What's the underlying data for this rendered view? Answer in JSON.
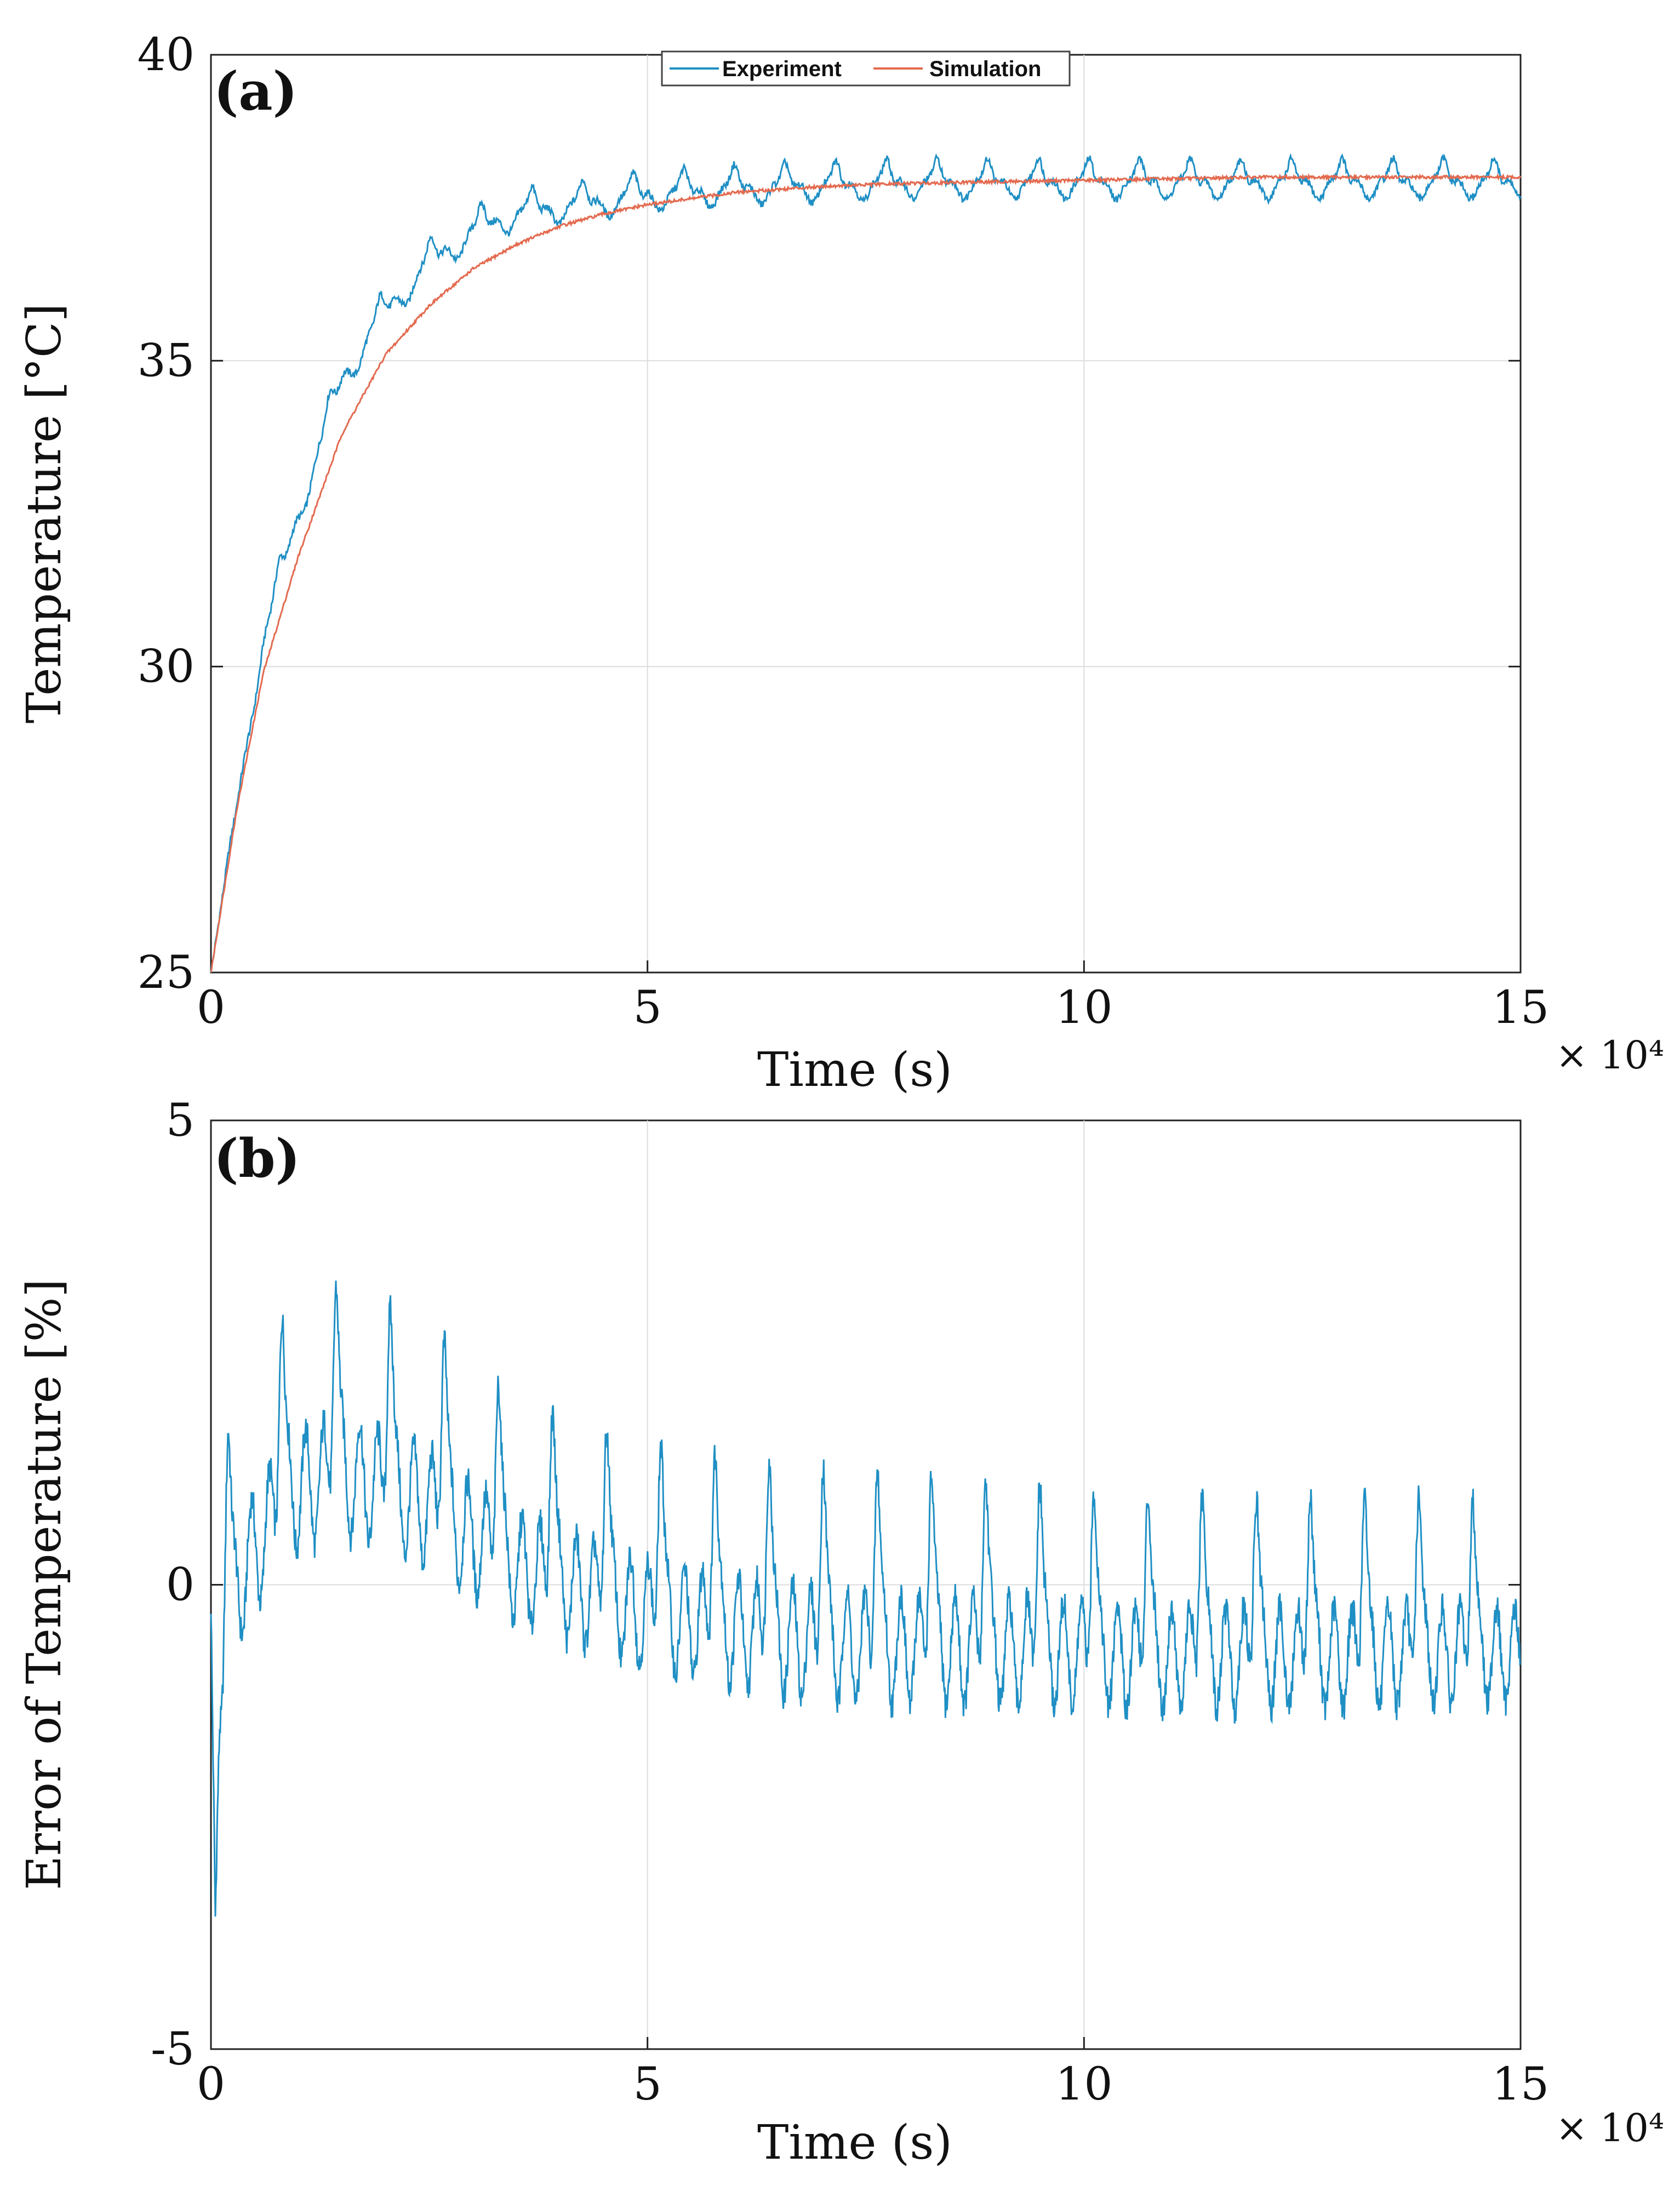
{
  "colors": {
    "experiment": "#1f8fc4",
    "simulation": "#e36a4f",
    "grid": "#dcdcdc",
    "axis": "#222222"
  },
  "chart_data": [
    {
      "type": "line",
      "panel_label": "(a)",
      "title": "",
      "xlabel": "Time (s)",
      "ylabel": "Temperature [°C]",
      "x_exponent_label": "× 10⁴",
      "xlim": [
        0,
        15
      ],
      "ylim": [
        25,
        40
      ],
      "x_ticks": [
        0,
        5,
        10,
        15
      ],
      "y_ticks": [
        25,
        30,
        35,
        40
      ],
      "x_tick_labels": [
        "0",
        "5",
        "10",
        "15"
      ],
      "y_tick_labels": [
        "25",
        "30",
        "35",
        "40"
      ],
      "grid": true,
      "legend": {
        "placement": "top-center",
        "entries": [
          "Experiment",
          "Simulation"
        ]
      },
      "series": [
        {
          "name": "Experiment",
          "color": "#1f8fc4",
          "x": [
            0,
            0.3,
            0.6,
            1.0,
            1.5,
            2.0,
            2.5,
            3.0,
            3.5,
            4.0,
            4.5,
            5.0,
            6.0,
            7.0,
            8.0,
            10.0,
            12.0,
            14.0,
            15.0
          ],
          "y": [
            25.0,
            27.8,
            30.5,
            32.6,
            34.8,
            35.9,
            36.7,
            37.2,
            37.5,
            37.6,
            37.7,
            37.8,
            37.9,
            37.95,
            38.0,
            38.0,
            38.0,
            38.0,
            38.0
          ],
          "oscillation": {
            "amplitude": 0.6,
            "period": 0.58
          }
        },
        {
          "name": "Simulation",
          "color": "#e36a4f",
          "x": [
            0,
            0.3,
            0.6,
            1.0,
            1.5,
            2.0,
            2.5,
            3.0,
            3.5,
            4.0,
            4.5,
            5.0,
            6.0,
            7.0,
            8.0,
            10.0,
            12.0,
            14.0,
            15.0
          ],
          "y": [
            25.0,
            27.7,
            29.9,
            31.8,
            33.8,
            35.1,
            35.9,
            36.5,
            36.9,
            37.2,
            37.4,
            37.55,
            37.75,
            37.85,
            37.9,
            37.95,
            38.0,
            38.0,
            38.0
          ]
        }
      ]
    },
    {
      "type": "line",
      "panel_label": "(b)",
      "title": "",
      "xlabel": "Time (s)",
      "ylabel": "Error of Temperature [%]",
      "x_exponent_label": "× 10⁴",
      "xlim": [
        0,
        15
      ],
      "ylim": [
        -5,
        5
      ],
      "x_ticks": [
        0,
        5,
        10,
        15
      ],
      "y_ticks": [
        -5,
        0,
        5
      ],
      "x_tick_labels": [
        "0",
        "5",
        "10",
        "15"
      ],
      "y_tick_labels": [
        "-5",
        "0",
        "5"
      ],
      "grid": true,
      "series": [
        {
          "name": "Error",
          "color": "#1f8fc4",
          "x": [
            0,
            0.05,
            0.1,
            0.2,
            0.4,
            0.9,
            1.5,
            2.5,
            3.5,
            5.0,
            7.0,
            9.0,
            11.0,
            13.0,
            15.0
          ],
          "y": [
            0.0,
            -3.5,
            -1.0,
            0.5,
            1.0,
            1.8,
            2.0,
            1.6,
            0.9,
            0.4,
            0.1,
            0.0,
            -0.1,
            -0.1,
            -0.1
          ],
          "oscillation_amplitude": [
            0.5,
            0.9,
            1.5,
            2.0,
            2.0,
            2.0,
            2.0,
            1.9,
            1.8,
            1.8,
            1.9,
            1.8,
            1.7,
            1.7,
            1.6
          ],
          "period": 0.62
        }
      ]
    }
  ]
}
